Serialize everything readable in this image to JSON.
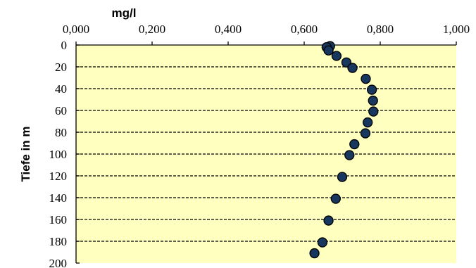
{
  "chart_data": {
    "type": "scatter",
    "title": "",
    "xlabel": "mg/l",
    "ylabel": "Tiefe in m",
    "xlim": [
      0,
      1
    ],
    "ylim": [
      0,
      200
    ],
    "y_inverted": true,
    "x_axis_position": "top",
    "x_ticks": [
      "0,000",
      "0,200",
      "0,400",
      "0,600",
      "0,800",
      "1,000"
    ],
    "x_tick_values": [
      0,
      0.2,
      0.4,
      0.6,
      0.8,
      1.0
    ],
    "y_ticks": [
      "0",
      "20",
      "40",
      "60",
      "80",
      "100",
      "120",
      "140",
      "160",
      "180",
      "200"
    ],
    "y_tick_values": [
      0,
      20,
      40,
      60,
      80,
      100,
      120,
      140,
      160,
      180,
      200
    ],
    "grid": "horizontal dashed",
    "legend": "none",
    "series": [
      {
        "points": [
          {
            "x": 0.668,
            "y": 1
          },
          {
            "x": 0.659,
            "y": 2
          },
          {
            "x": 0.664,
            "y": 5
          },
          {
            "x": 0.685,
            "y": 10
          },
          {
            "x": 0.711,
            "y": 16
          },
          {
            "x": 0.727,
            "y": 21
          },
          {
            "x": 0.762,
            "y": 31
          },
          {
            "x": 0.778,
            "y": 41
          },
          {
            "x": 0.781,
            "y": 51
          },
          {
            "x": 0.782,
            "y": 61
          },
          {
            "x": 0.767,
            "y": 71
          },
          {
            "x": 0.761,
            "y": 81
          },
          {
            "x": 0.732,
            "y": 91
          },
          {
            "x": 0.719,
            "y": 101
          },
          {
            "x": 0.7,
            "y": 121
          },
          {
            "x": 0.683,
            "y": 141
          },
          {
            "x": 0.664,
            "y": 161
          },
          {
            "x": 0.648,
            "y": 181
          },
          {
            "x": 0.627,
            "y": 191
          }
        ]
      }
    ]
  },
  "colors": {
    "plot_background": "#FFFFC0",
    "gridline": "#000000",
    "marker_fill": "#17375E",
    "marker_stroke": "#000000"
  }
}
